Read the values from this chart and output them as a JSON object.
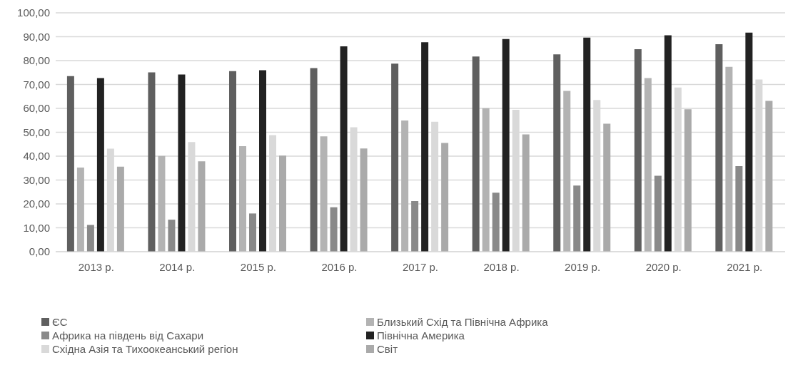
{
  "chart_data": {
    "type": "bar",
    "categories": [
      "2013 р.",
      "2014 р.",
      "2015 р.",
      "2016 р.",
      "2017 р.",
      "2018 р.",
      "2019 р.",
      "2020 р.",
      "2021 р."
    ],
    "series": [
      {
        "name": "ЄС",
        "color": "#5f5f5f",
        "values": [
          73.5,
          75.1,
          75.6,
          76.9,
          78.7,
          81.7,
          82.6,
          84.8,
          86.9
        ]
      },
      {
        "name": "Близький Схід та Північна Африка",
        "color": "#b3b3b3",
        "values": [
          35.2,
          40.1,
          44.2,
          48.3,
          54.9,
          60.1,
          67.3,
          72.7,
          77.4
        ]
      },
      {
        "name": "Африка на південь від Сахари",
        "color": "#898989",
        "values": [
          11.2,
          13.4,
          16.0,
          18.6,
          21.2,
          24.7,
          27.7,
          31.8,
          35.8
        ]
      },
      {
        "name": "Північна Америка",
        "color": "#222222",
        "values": [
          72.7,
          74.2,
          76.0,
          86.0,
          87.7,
          89.0,
          89.6,
          90.6,
          91.7
        ]
      },
      {
        "name": "Східна Азія та Тихоокеанський регіон",
        "color": "#d9d9d9",
        "values": [
          43.1,
          45.9,
          48.8,
          52.1,
          54.4,
          59.4,
          63.5,
          68.7,
          72.1
        ]
      },
      {
        "name": "Світ",
        "color": "#aaaaaa",
        "values": [
          35.6,
          37.8,
          40.2,
          43.2,
          45.5,
          49.1,
          53.6,
          59.6,
          63.1
        ]
      }
    ],
    "ylim": [
      0,
      100
    ],
    "yticks": [
      {
        "value": 0,
        "label": "0,00"
      },
      {
        "value": 10,
        "label": "10,00"
      },
      {
        "value": 20,
        "label": "20,00"
      },
      {
        "value": 30,
        "label": "30,00"
      },
      {
        "value": 40,
        "label": "40,00"
      },
      {
        "value": 50,
        "label": "50,00"
      },
      {
        "value": 60,
        "label": "60,00"
      },
      {
        "value": 70,
        "label": "70,00"
      },
      {
        "value": 80,
        "label": "80,00"
      },
      {
        "value": 90,
        "label": "90,00"
      },
      {
        "value": 100,
        "label": "100,00"
      }
    ],
    "grid": "y",
    "legend": "bottom"
  }
}
